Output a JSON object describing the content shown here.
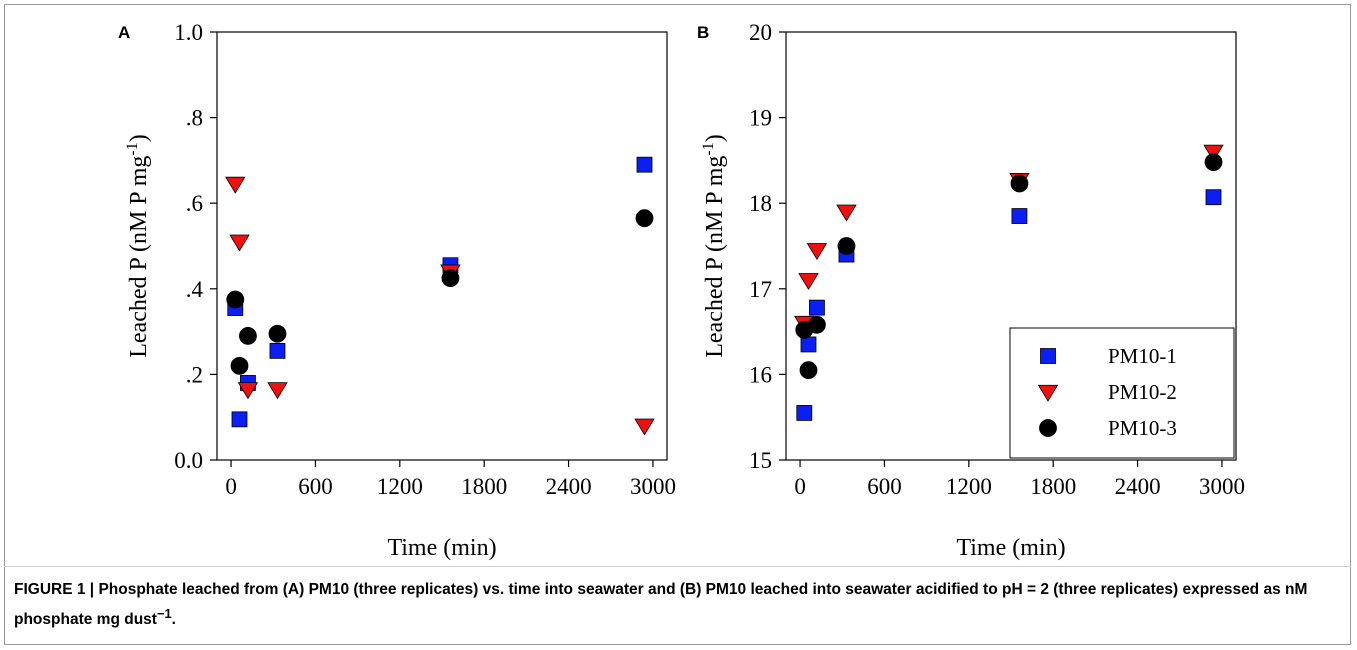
{
  "chart_data": [
    {
      "type": "scatter",
      "panel_label": "A",
      "xlabel": "Time (min)",
      "ylabel": "Leached P (nM P mg",
      "ylabel_sup": "-1",
      "ylabel_end": ")",
      "xlim": [
        -100,
        3100
      ],
      "ylim": [
        0,
        1.0
      ],
      "x_ticks": [
        0,
        600,
        1200,
        1800,
        2400,
        3000
      ],
      "x_tick_labels": [
        "0",
        "600",
        "1200",
        "1800",
        "2400",
        "3000"
      ],
      "y_ticks": [
        0,
        0.2,
        0.4,
        0.6,
        0.8,
        1.0
      ],
      "y_tick_labels": [
        "0.0",
        ".2",
        ".4",
        ".6",
        ".8",
        "1.0"
      ],
      "grid": false,
      "series": [
        {
          "name": "PM10-1",
          "marker": "square",
          "color": "#0a1ef5",
          "x": [
            30,
            60,
            120,
            330,
            1560,
            2940
          ],
          "y": [
            0.355,
            0.095,
            0.18,
            0.255,
            0.455,
            0.69
          ]
        },
        {
          "name": "PM10-2",
          "marker": "triangle-down",
          "color": "#f01010",
          "x": [
            30,
            60,
            120,
            330,
            1560,
            2940
          ],
          "y": [
            0.645,
            0.51,
            0.165,
            0.165,
            0.44,
            0.08
          ]
        },
        {
          "name": "PM10-3",
          "marker": "circle",
          "color": "#000000",
          "x": [
            30,
            60,
            120,
            330,
            1560,
            2940
          ],
          "y": [
            0.375,
            0.22,
            0.29,
            0.295,
            0.425,
            0.565
          ]
        }
      ]
    },
    {
      "type": "scatter",
      "panel_label": "B",
      "xlabel": "Time (min)",
      "ylabel": "Leached P (nM P mg",
      "ylabel_sup": "-1",
      "ylabel_end": ")",
      "xlim": [
        -100,
        3100
      ],
      "ylim": [
        15,
        20
      ],
      "x_ticks": [
        0,
        600,
        1200,
        1800,
        2400,
        3000
      ],
      "x_tick_labels": [
        "0",
        "600",
        "1200",
        "1800",
        "2400",
        "3000"
      ],
      "y_ticks": [
        15,
        16,
        17,
        18,
        19,
        20
      ],
      "y_tick_labels": [
        "15",
        "16",
        "17",
        "18",
        "19",
        "20"
      ],
      "grid": false,
      "legend": "bottom-right",
      "series": [
        {
          "name": "PM10-1",
          "marker": "square",
          "color": "#0a1ef5",
          "x": [
            30,
            60,
            120,
            330,
            1560,
            2940
          ],
          "y": [
            15.55,
            16.35,
            16.78,
            17.4,
            17.85,
            18.07
          ]
        },
        {
          "name": "PM10-2",
          "marker": "triangle-down",
          "color": "#f01010",
          "x": [
            30,
            60,
            120,
            330,
            1560,
            2940
          ],
          "y": [
            16.6,
            17.1,
            17.45,
            17.9,
            18.27,
            18.6
          ]
        },
        {
          "name": "PM10-3",
          "marker": "circle",
          "color": "#000000",
          "x": [
            30,
            60,
            120,
            330,
            1560,
            2940
          ],
          "y": [
            16.52,
            16.05,
            16.58,
            17.5,
            18.23,
            18.48
          ]
        }
      ]
    }
  ],
  "caption": {
    "label": "FIGURE 1 | ",
    "text": "Phosphate leached from (A) PM10 (three replicates) vs. time into seawater and (B) PM10 leached into seawater acidified to pH = 2 (three replicates) expressed as nM phosphate mg dust",
    "sup": "−1",
    "end": "."
  }
}
